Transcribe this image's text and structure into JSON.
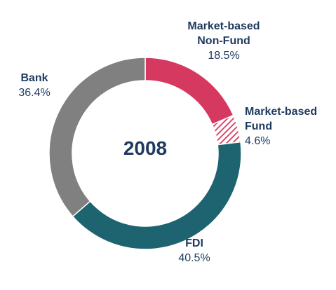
{
  "chart_data": {
    "type": "pie",
    "donut": true,
    "center_label": "2008",
    "slices": [
      {
        "name_lines": [
          "Market-based",
          "Non-Fund"
        ],
        "value": 18.5,
        "value_label": "18.5%",
        "color": "#d6395f",
        "pattern": "solid"
      },
      {
        "name_lines": [
          "Market-based",
          "Fund"
        ],
        "value": 4.6,
        "value_label": "4.6%",
        "color": "#d6395f",
        "pattern": "hatched"
      },
      {
        "name_lines": [
          "FDI"
        ],
        "value": 40.5,
        "value_label": "40.5%",
        "color": "#1d6470",
        "pattern": "solid"
      },
      {
        "name_lines": [
          "Bank"
        ],
        "value": 36.4,
        "value_label": "36.4%",
        "color": "#808080",
        "pattern": "solid"
      }
    ]
  }
}
